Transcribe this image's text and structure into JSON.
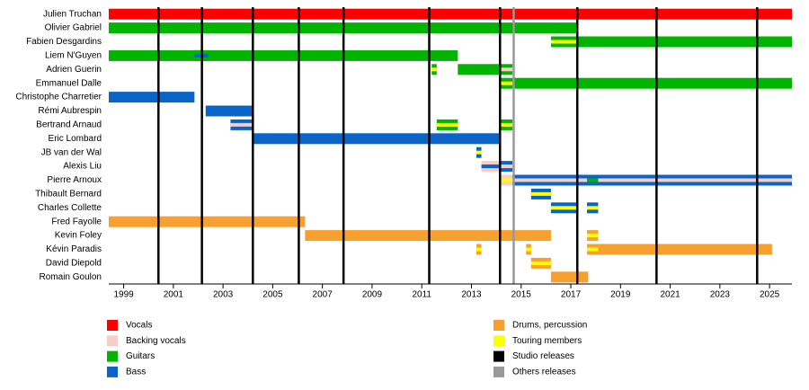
{
  "chart_data": {
    "type": "timeline",
    "xlim": [
      1998.4,
      2025.9
    ],
    "xticks": [
      1999,
      2001,
      2003,
      2005,
      2007,
      2009,
      2011,
      2013,
      2015,
      2017,
      2019,
      2021,
      2023,
      2025
    ],
    "legend": [
      {
        "name": "Vocals",
        "color": "#ff0000"
      },
      {
        "name": "Backing vocals",
        "color": "#f7cdc6"
      },
      {
        "name": "Guitars",
        "color": "#00b400"
      },
      {
        "name": "Bass",
        "color": "#0a64c8"
      },
      {
        "name": "Drums, percussion",
        "color": "#f7a030"
      },
      {
        "name": "Touring members",
        "color": "#ffff00"
      },
      {
        "name": "Studio releases",
        "color": "#000000"
      },
      {
        "name": "Others releases",
        "color": "#999999"
      }
    ],
    "studio_releases": [
      2000.4,
      2002.15,
      2004.2,
      2006.05,
      2007.85,
      2011.3,
      2014.15,
      2017.26,
      2020.45,
      2024.5
    ],
    "other_releases": [
      2014.7
    ],
    "members": [
      {
        "name": "Julien Truchan",
        "periods": [
          {
            "start": 1998.4,
            "end": 2025.9,
            "roles": [
              "Vocals"
            ]
          }
        ]
      },
      {
        "name": "Olivier Gabriel",
        "periods": [
          {
            "start": 1998.4,
            "end": 2017.3,
            "roles": [
              "Guitars"
            ]
          }
        ]
      },
      {
        "name": "Fabien Desgardins",
        "periods": [
          {
            "start": 2016.2,
            "end": 2017.3,
            "roles": [
              "Guitars",
              "Touring members"
            ]
          },
          {
            "start": 2017.3,
            "end": 2025.9,
            "roles": [
              "Guitars"
            ]
          }
        ]
      },
      {
        "name": "Liem N'Guyen",
        "periods": [
          {
            "start": 1998.4,
            "end": 2012.45,
            "roles": [
              "Guitars"
            ]
          },
          {
            "start": 2001.85,
            "end": 2002.4,
            "roles": [
              "Guitars",
              "Bass"
            ]
          }
        ]
      },
      {
        "name": "Adrien Guerin",
        "periods": [
          {
            "start": 2011.4,
            "end": 2011.6,
            "roles": [
              "Guitars",
              "Touring members"
            ]
          },
          {
            "start": 2012.45,
            "end": 2014.15,
            "roles": [
              "Guitars"
            ]
          },
          {
            "start": 2014.15,
            "end": 2014.65,
            "roles": [
              "Guitars",
              "Backing vocals"
            ]
          }
        ]
      },
      {
        "name": "Emmanuel Dalle",
        "periods": [
          {
            "start": 2014.15,
            "end": 2014.65,
            "roles": [
              "Guitars",
              "Touring members"
            ]
          },
          {
            "start": 2014.65,
            "end": 2025.9,
            "roles": [
              "Guitars"
            ]
          }
        ]
      },
      {
        "name": "Christophe Charretier",
        "periods": [
          {
            "start": 1998.4,
            "end": 2001.85,
            "roles": [
              "Bass"
            ]
          }
        ]
      },
      {
        "name": "Rémi Aubrespin",
        "periods": [
          {
            "start": 2002.3,
            "end": 2004.2,
            "roles": [
              "Bass"
            ]
          }
        ]
      },
      {
        "name": "Bertrand Arnaud",
        "periods": [
          {
            "start": 2003.3,
            "end": 2004.2,
            "roles": [
              "Bass",
              "Backing vocals"
            ]
          },
          {
            "start": 2011.6,
            "end": 2012.45,
            "roles": [
              "Guitars",
              "Touring members"
            ]
          },
          {
            "start": 2014.15,
            "end": 2014.65,
            "roles": [
              "Guitars",
              "Touring members"
            ]
          }
        ]
      },
      {
        "name": "Eric Lombard",
        "periods": [
          {
            "start": 2004.2,
            "end": 2014.15,
            "roles": [
              "Bass"
            ]
          }
        ]
      },
      {
        "name": "JB van der Wal",
        "periods": [
          {
            "start": 2013.2,
            "end": 2013.4,
            "roles": [
              "Bass",
              "Touring members"
            ]
          }
        ]
      },
      {
        "name": "Alexis Liu",
        "periods": [
          {
            "start": 2013.4,
            "end": 2014.15,
            "roles": [
              "Backing vocals",
              "Bass"
            ]
          },
          {
            "start": 2014.15,
            "end": 2014.65,
            "roles": [
              "Bass",
              "Backing vocals"
            ]
          }
        ]
      },
      {
        "name": "Pierre Arnoux",
        "periods": [
          {
            "start": 2014.15,
            "end": 2014.65,
            "roles": [
              "Backing vocals",
              "Touring members"
            ]
          },
          {
            "start": 2014.65,
            "end": 2025.9,
            "roles": [
              "Bass",
              "Backing vocals"
            ]
          },
          {
            "start": 2017.65,
            "end": 2018.1,
            "roles": [
              "Bass",
              "Guitars"
            ]
          }
        ]
      },
      {
        "name": "Thibault Bernard",
        "periods": [
          {
            "start": 2015.4,
            "end": 2016.2,
            "roles": [
              "Bass",
              "Touring members"
            ]
          }
        ]
      },
      {
        "name": "Charles Collette",
        "periods": [
          {
            "start": 2016.2,
            "end": 2017.3,
            "roles": [
              "Bass",
              "Touring members"
            ]
          },
          {
            "start": 2017.65,
            "end": 2018.1,
            "roles": [
              "Bass",
              "Touring members"
            ]
          }
        ]
      },
      {
        "name": "Fred Fayolle",
        "periods": [
          {
            "start": 1998.4,
            "end": 2006.3,
            "roles": [
              "Drums, percussion"
            ]
          }
        ]
      },
      {
        "name": "Kevin Foley",
        "periods": [
          {
            "start": 2006.3,
            "end": 2016.2,
            "roles": [
              "Drums, percussion"
            ]
          },
          {
            "start": 2017.65,
            "end": 2018.1,
            "roles": [
              "Drums, percussion",
              "Touring members"
            ]
          }
        ]
      },
      {
        "name": "Kévin Paradis",
        "periods": [
          {
            "start": 2013.2,
            "end": 2013.4,
            "roles": [
              "Drums, percussion",
              "Touring members"
            ]
          },
          {
            "start": 2015.2,
            "end": 2015.4,
            "roles": [
              "Drums, percussion",
              "Touring members"
            ]
          },
          {
            "start": 2017.65,
            "end": 2018.1,
            "roles": [
              "Drums, percussion",
              "Touring members"
            ]
          },
          {
            "start": 2018.1,
            "end": 2025.1,
            "roles": [
              "Drums, percussion"
            ]
          }
        ]
      },
      {
        "name": "David Diepold",
        "periods": [
          {
            "start": 2015.4,
            "end": 2016.2,
            "roles": [
              "Drums, percussion",
              "Touring members"
            ]
          }
        ]
      },
      {
        "name": "Romain Goulon",
        "periods": [
          {
            "start": 2016.2,
            "end": 2017.7,
            "roles": [
              "Drums, percussion"
            ]
          }
        ]
      }
    ]
  }
}
